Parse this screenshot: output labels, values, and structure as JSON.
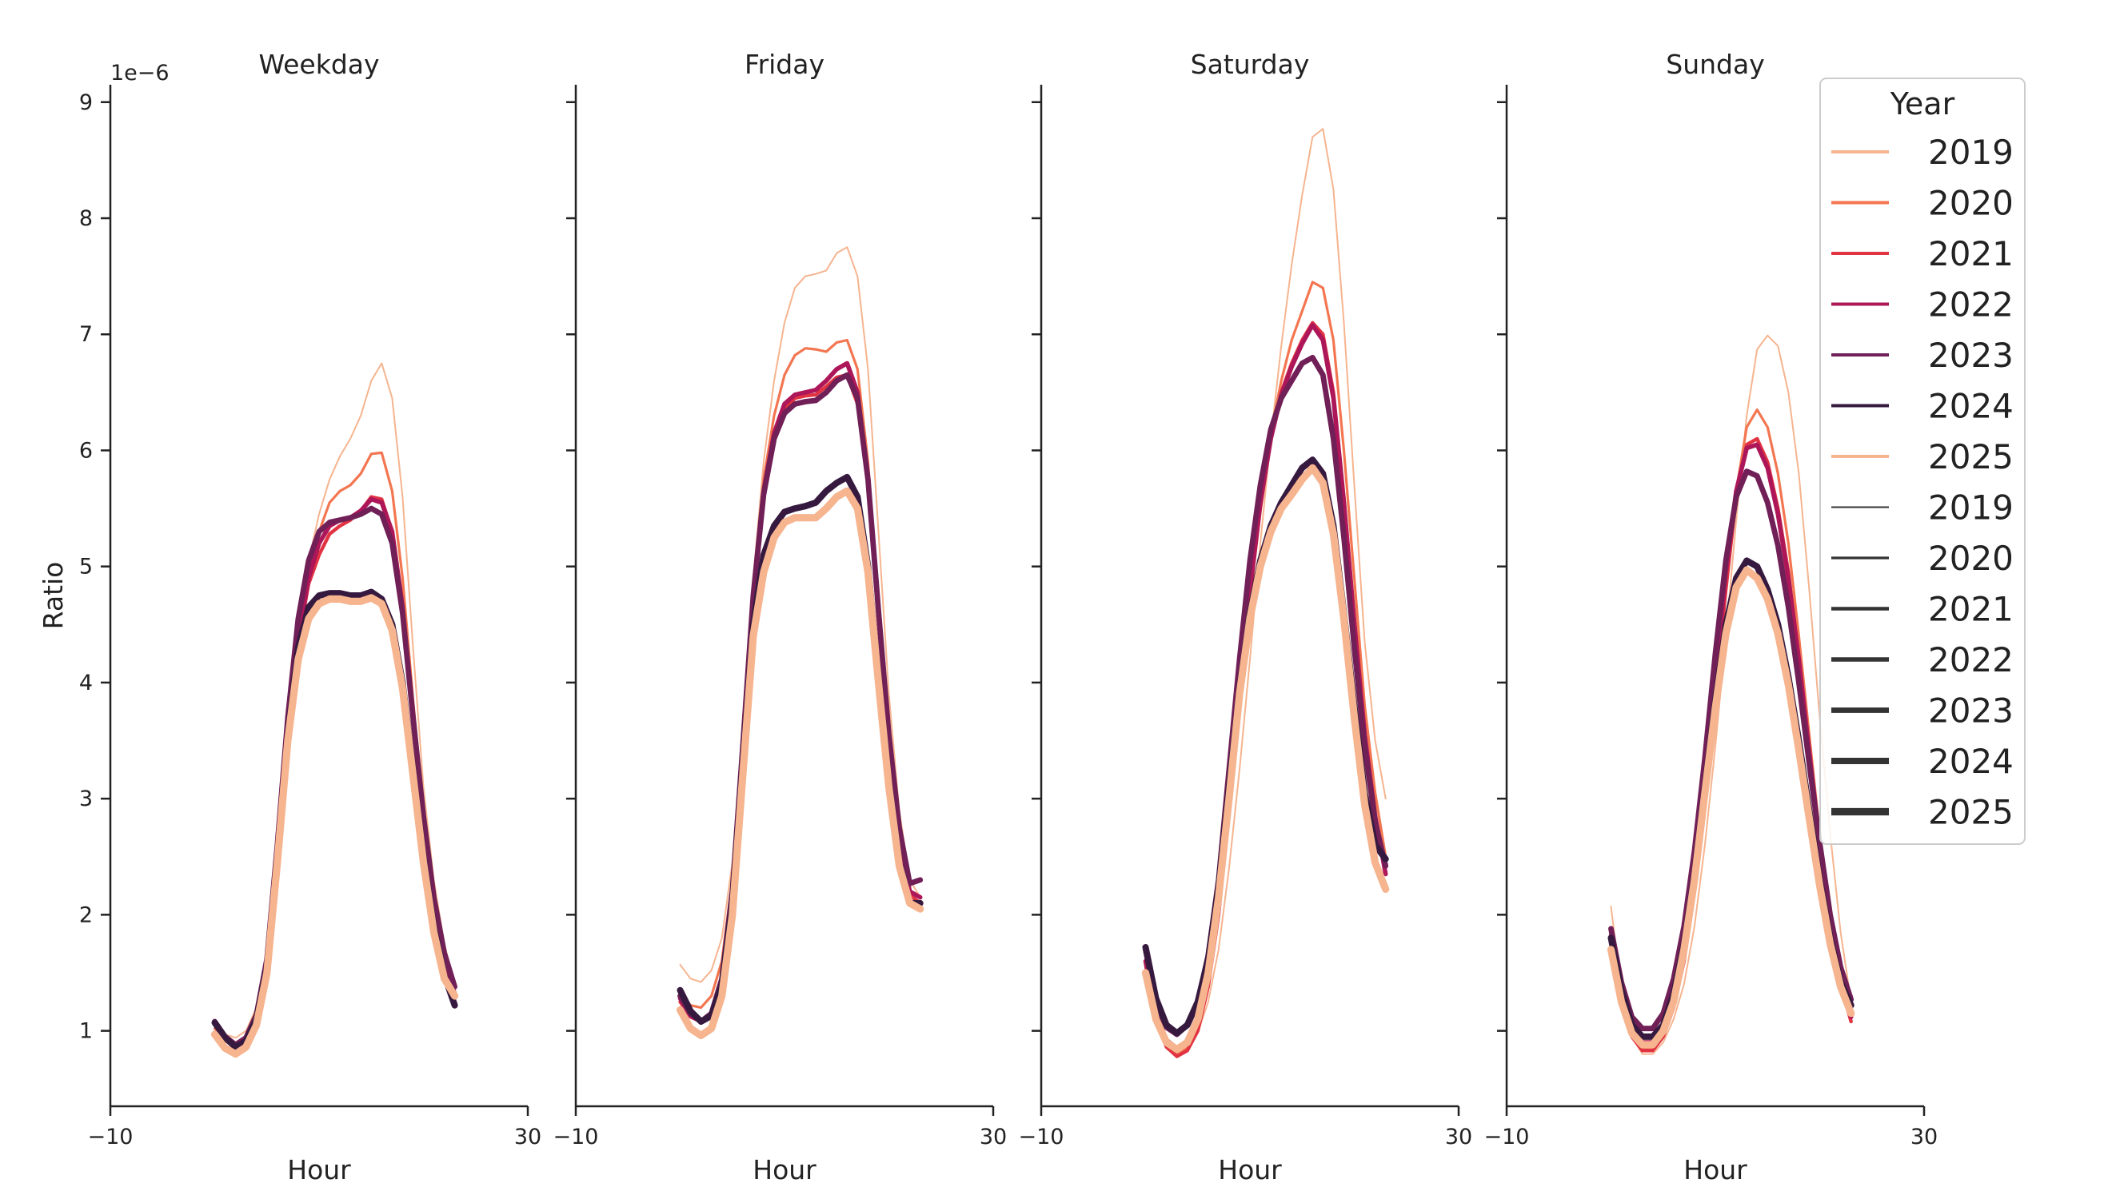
{
  "chart_data": {
    "type": "line",
    "shared": {
      "xlabel": "Hour",
      "ylabel": "Ratio",
      "xlim": [
        -10,
        30
      ],
      "ylim": [
        0.35,
        9.15
      ],
      "xticks": [
        -10,
        30
      ],
      "yticks": [
        1,
        2,
        3,
        4,
        5,
        6,
        7,
        8,
        9
      ],
      "y_offset_label": "1e−6",
      "hours": [
        0,
        1,
        2,
        3,
        4,
        5,
        6,
        7,
        8,
        9,
        10,
        11,
        12,
        13,
        14,
        15,
        16,
        17,
        18,
        19,
        20,
        21,
        22,
        23
      ]
    },
    "legend": {
      "title": "Year",
      "position": "upper-right",
      "hue_entries": [
        {
          "label": "2019",
          "color": "#f6b48f"
        },
        {
          "label": "2020",
          "color": "#f37651"
        },
        {
          "label": "2021",
          "color": "#e13342"
        },
        {
          "label": "2022",
          "color": "#ad1759"
        },
        {
          "label": "2023",
          "color": "#701f57"
        },
        {
          "label": "2024",
          "color": "#35193e"
        },
        {
          "label": "2025",
          "color": "#f6b48f"
        }
      ],
      "size_entries": [
        {
          "label": "2019",
          "width": 1.0
        },
        {
          "label": "2020",
          "width": 1.6
        },
        {
          "label": "2021",
          "width": 2.2
        },
        {
          "label": "2022",
          "width": 2.8
        },
        {
          "label": "2023",
          "width": 3.4
        },
        {
          "label": "2024",
          "width": 4.0
        },
        {
          "label": "2025",
          "width": 4.6
        }
      ]
    },
    "panels": [
      {
        "title": "Weekday",
        "series": [
          {
            "year": "2019",
            "values": [
              1.05,
              0.97,
              0.94,
              1.0,
              1.2,
              1.7,
              2.6,
              3.7,
              4.5,
              5.05,
              5.45,
              5.75,
              5.95,
              6.1,
              6.3,
              6.6,
              6.75,
              6.45,
              5.6,
              4.3,
              3.1,
              2.3,
              1.75,
              1.4
            ]
          },
          {
            "year": "2020",
            "values": [
              1.02,
              0.93,
              0.88,
              0.95,
              1.15,
              1.65,
              2.6,
              3.7,
              4.5,
              5.0,
              5.3,
              5.55,
              5.65,
              5.7,
              5.8,
              5.97,
              5.98,
              5.65,
              4.9,
              3.85,
              2.9,
              2.15,
              1.65,
              1.35
            ]
          },
          {
            "year": "2021",
            "values": [
              1.05,
              0.92,
              0.86,
              0.93,
              1.12,
              1.62,
              2.55,
              3.6,
              4.35,
              4.85,
              5.1,
              5.28,
              5.35,
              5.4,
              5.48,
              5.6,
              5.58,
              5.3,
              4.65,
              3.7,
              2.8,
              2.1,
              1.6,
              1.3
            ]
          },
          {
            "year": "2022",
            "values": [
              1.07,
              0.93,
              0.86,
              0.92,
              1.12,
              1.6,
              2.55,
              3.6,
              4.4,
              4.9,
              5.2,
              5.35,
              5.4,
              5.42,
              5.48,
              5.58,
              5.55,
              5.3,
              4.65,
              3.7,
              2.8,
              2.1,
              1.6,
              1.32
            ]
          },
          {
            "year": "2023",
            "values": [
              1.08,
              0.95,
              0.88,
              0.94,
              1.14,
              1.62,
              2.6,
              3.7,
              4.55,
              5.05,
              5.3,
              5.38,
              5.4,
              5.42,
              5.45,
              5.5,
              5.45,
              5.2,
              4.6,
              3.7,
              2.85,
              2.15,
              1.67,
              1.38
            ]
          },
          {
            "year": "2024",
            "values": [
              1.07,
              0.94,
              0.86,
              0.91,
              1.1,
              1.55,
              2.5,
              3.55,
              4.3,
              4.65,
              4.75,
              4.77,
              4.77,
              4.75,
              4.75,
              4.78,
              4.72,
              4.5,
              4.0,
              3.25,
              2.5,
              1.9,
              1.48,
              1.22
            ]
          },
          {
            "year": "2025",
            "values": [
              0.97,
              0.85,
              0.8,
              0.86,
              1.05,
              1.5,
              2.45,
              3.5,
              4.2,
              4.55,
              4.68,
              4.72,
              4.72,
              4.7,
              4.7,
              4.73,
              4.68,
              4.45,
              3.95,
              3.2,
              2.45,
              1.85,
              1.45,
              1.3
            ]
          }
        ]
      },
      {
        "title": "Friday",
        "series": [
          {
            "year": "2019",
            "values": [
              1.57,
              1.45,
              1.42,
              1.52,
              1.8,
              2.45,
              3.6,
              4.9,
              5.9,
              6.6,
              7.1,
              7.4,
              7.5,
              7.52,
              7.55,
              7.7,
              7.75,
              7.5,
              6.7,
              5.3,
              3.9,
              2.9,
              2.3,
              2.15
            ]
          },
          {
            "year": "2020",
            "values": [
              1.33,
              1.22,
              1.2,
              1.3,
              1.6,
              2.3,
              3.5,
              4.8,
              5.75,
              6.3,
              6.65,
              6.82,
              6.88,
              6.87,
              6.85,
              6.93,
              6.95,
              6.7,
              5.9,
              4.7,
              3.55,
              2.7,
              2.2,
              2.08
            ]
          },
          {
            "year": "2021",
            "values": [
              1.25,
              1.12,
              1.08,
              1.16,
              1.45,
              2.15,
              3.4,
              4.7,
              5.6,
              6.1,
              6.35,
              6.45,
              6.47,
              6.48,
              6.55,
              6.63,
              6.65,
              6.4,
              5.7,
              4.55,
              3.45,
              2.65,
              2.17,
              2.1
            ]
          },
          {
            "year": "2022",
            "values": [
              1.28,
              1.13,
              1.08,
              1.15,
              1.45,
              2.2,
              3.45,
              4.75,
              5.65,
              6.15,
              6.4,
              6.48,
              6.5,
              6.52,
              6.6,
              6.7,
              6.75,
              6.5,
              5.75,
              4.6,
              3.5,
              2.7,
              2.2,
              2.15
            ]
          },
          {
            "year": "2023",
            "values": [
              1.3,
              1.15,
              1.08,
              1.15,
              1.45,
              2.2,
              3.45,
              4.75,
              5.62,
              6.1,
              6.32,
              6.4,
              6.42,
              6.43,
              6.5,
              6.6,
              6.65,
              6.45,
              5.75,
              4.62,
              3.55,
              2.75,
              2.27,
              2.3
            ]
          },
          {
            "year": "2024",
            "values": [
              1.35,
              1.17,
              1.08,
              1.13,
              1.4,
              2.1,
              3.3,
              4.5,
              5.1,
              5.35,
              5.47,
              5.5,
              5.52,
              5.55,
              5.65,
              5.72,
              5.77,
              5.6,
              5.0,
              4.05,
              3.15,
              2.45,
              2.1,
              2.1
            ]
          },
          {
            "year": "2025",
            "values": [
              1.18,
              1.02,
              0.96,
              1.02,
              1.3,
              2.0,
              3.2,
              4.4,
              4.95,
              5.25,
              5.38,
              5.42,
              5.42,
              5.42,
              5.5,
              5.6,
              5.65,
              5.5,
              4.95,
              4.0,
              3.1,
              2.42,
              2.1,
              2.05
            ]
          }
        ]
      },
      {
        "title": "Saturday",
        "series": [
          {
            "year": "2019",
            "values": [
              1.55,
              1.15,
              0.92,
              0.82,
              0.85,
              0.98,
              1.25,
              1.7,
              2.4,
              3.25,
              4.2,
              5.2,
              6.1,
              6.9,
              7.6,
              8.2,
              8.7,
              8.77,
              8.25,
              7.1,
              5.7,
              4.35,
              3.5,
              3.0
            ]
          },
          {
            "year": "2020",
            "values": [
              1.55,
              1.1,
              0.88,
              0.8,
              0.85,
              1.02,
              1.4,
              2.0,
              2.85,
              3.8,
              4.7,
              5.5,
              6.15,
              6.6,
              6.95,
              7.2,
              7.45,
              7.4,
              6.95,
              6.0,
              4.9,
              3.8,
              3.05,
              2.5
            ]
          },
          {
            "year": "2021",
            "values": [
              1.58,
              1.1,
              0.86,
              0.78,
              0.83,
              1.0,
              1.38,
              2.0,
              2.9,
              3.85,
              4.75,
              5.5,
              6.1,
              6.5,
              6.75,
              6.95,
              7.1,
              7.0,
              6.5,
              5.6,
              4.55,
              3.55,
              2.85,
              2.35
            ]
          },
          {
            "year": "2022",
            "values": [
              1.6,
              1.15,
              0.92,
              0.85,
              0.9,
              1.08,
              1.45,
              2.05,
              2.95,
              3.9,
              4.8,
              5.55,
              6.1,
              6.48,
              6.72,
              6.92,
              7.08,
              6.95,
              6.45,
              5.55,
              4.52,
              3.55,
              2.85,
              2.35
            ]
          },
          {
            "year": "2023",
            "values": [
              1.7,
              1.25,
              1.03,
              0.97,
              1.05,
              1.25,
              1.65,
              2.3,
              3.25,
              4.2,
              5.05,
              5.7,
              6.18,
              6.45,
              6.6,
              6.75,
              6.8,
              6.65,
              6.1,
              5.25,
              4.3,
              3.45,
              2.8,
              2.42
            ]
          },
          {
            "year": "2024",
            "values": [
              1.72,
              1.28,
              1.05,
              0.98,
              1.05,
              1.25,
              1.62,
              2.25,
              3.1,
              3.95,
              4.6,
              5.05,
              5.35,
              5.55,
              5.7,
              5.85,
              5.92,
              5.8,
              5.35,
              4.6,
              3.8,
              3.05,
              2.6,
              2.48
            ]
          },
          {
            "year": "2025",
            "values": [
              1.5,
              1.1,
              0.9,
              0.84,
              0.9,
              1.1,
              1.5,
              2.15,
              3.0,
              3.9,
              4.55,
              5.0,
              5.3,
              5.5,
              5.62,
              5.75,
              5.85,
              5.72,
              5.28,
              4.55,
              3.7,
              2.95,
              2.45,
              2.22
            ]
          }
        ]
      },
      {
        "title": "Sunday",
        "series": [
          {
            "year": "2019",
            "values": [
              2.07,
              1.35,
              0.95,
              0.8,
              0.8,
              0.9,
              1.1,
              1.4,
              1.9,
              2.6,
              3.45,
              4.4,
              5.4,
              6.3,
              6.87,
              6.99,
              6.9,
              6.5,
              5.8,
              4.8,
              3.7,
              2.7,
              1.85,
              1.25
            ]
          },
          {
            "year": "2020",
            "values": [
              1.75,
              1.25,
              0.95,
              0.85,
              0.85,
              0.95,
              1.2,
              1.6,
              2.2,
              2.95,
              3.85,
              4.8,
              5.65,
              6.2,
              6.35,
              6.2,
              5.8,
              5.2,
              4.4,
              3.55,
              2.7,
              2.0,
              1.45,
              1.1
            ]
          },
          {
            "year": "2021",
            "values": [
              1.8,
              1.25,
              0.95,
              0.83,
              0.83,
              0.95,
              1.2,
              1.6,
              2.2,
              3.0,
              3.9,
              4.8,
              5.6,
              6.05,
              6.1,
              5.9,
              5.5,
              4.95,
              4.2,
              3.4,
              2.6,
              1.9,
              1.4,
              1.08
            ]
          },
          {
            "year": "2022",
            "values": [
              1.82,
              1.32,
              1.0,
              0.9,
              0.9,
              1.03,
              1.3,
              1.75,
              2.35,
              3.15,
              4.05,
              4.95,
              5.65,
              6.02,
              6.05,
              5.85,
              5.45,
              4.9,
              4.2,
              3.4,
              2.62,
              1.95,
              1.45,
              1.12
            ]
          },
          {
            "year": "2023",
            "values": [
              1.88,
              1.42,
              1.12,
              1.02,
              1.02,
              1.15,
              1.45,
              1.9,
              2.55,
              3.35,
              4.25,
              5.05,
              5.6,
              5.82,
              5.78,
              5.55,
              5.18,
              4.65,
              4.0,
              3.3,
              2.62,
              2.0,
              1.55,
              1.27
            ]
          },
          {
            "year": "2024",
            "values": [
              1.8,
              1.35,
              1.05,
              0.95,
              0.95,
              1.05,
              1.32,
              1.75,
              2.35,
              3.1,
              3.85,
              4.5,
              4.9,
              5.05,
              5.0,
              4.8,
              4.5,
              4.05,
              3.5,
              2.9,
              2.3,
              1.8,
              1.42,
              1.22
            ]
          },
          {
            "year": "2025",
            "values": [
              1.7,
              1.25,
              0.98,
              0.88,
              0.88,
              1.0,
              1.25,
              1.7,
              2.3,
              3.05,
              3.78,
              4.42,
              4.82,
              4.97,
              4.9,
              4.72,
              4.42,
              3.98,
              3.42,
              2.83,
              2.25,
              1.75,
              1.38,
              1.15
            ]
          }
        ]
      }
    ]
  }
}
